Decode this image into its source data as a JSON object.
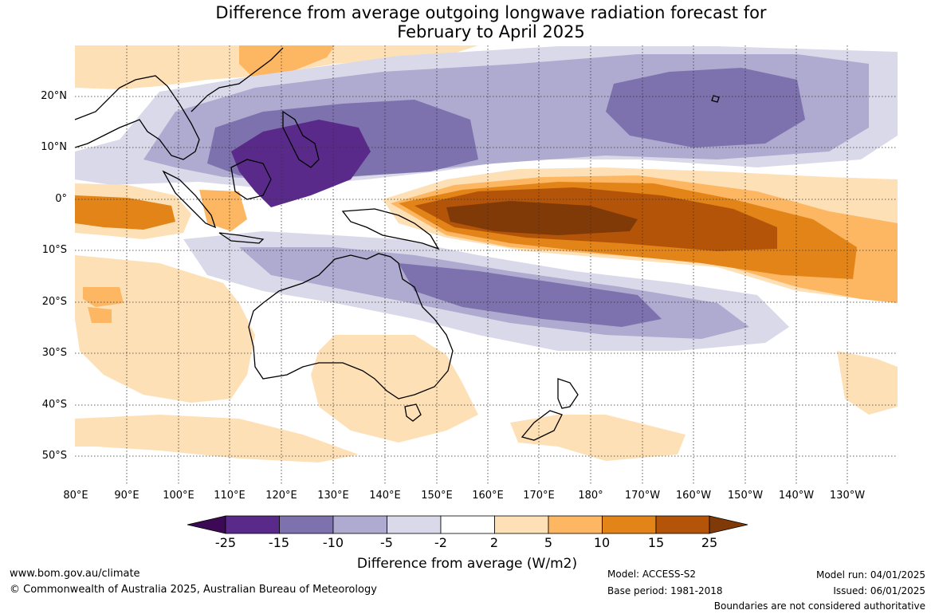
{
  "title": {
    "line1": "Difference from average outgoing longwave radiation forecast for",
    "line2": "February to April 2025"
  },
  "map": {
    "lat_labels": [
      "20°N",
      "10°N",
      "0°",
      "10°S",
      "20°S",
      "30°S",
      "40°S",
      "50°S"
    ],
    "lon_labels": [
      "80°E",
      "90°E",
      "100°E",
      "110°E",
      "120°E",
      "130°E",
      "140°E",
      "150°E",
      "160°E",
      "170°E",
      "180°",
      "170°W",
      "160°W",
      "150°W",
      "140°W",
      "130°W"
    ],
    "extent": {
      "lon_min": 80,
      "lon_max": 239,
      "lat_min": -55,
      "lat_max": 30
    }
  },
  "colorbar": {
    "labels": [
      "-25",
      "-15",
      "-10",
      "-5",
      "-2",
      "2",
      "5",
      "10",
      "15",
      "25"
    ],
    "colors": [
      "#3c0a55",
      "#5a2a8a",
      "#7d72ad",
      "#aeaad0",
      "#d9d9ea",
      "#ffffff",
      "#fee0b6",
      "#fdb662",
      "#e28418",
      "#b45408",
      "#7f3a08"
    ],
    "title": "Difference from average (W/m2)"
  },
  "footer": {
    "url": "www.bom.gov.au/climate",
    "copyright": "© Commonwealth of Australia 2025, Australian Bureau of Meteorology",
    "model": "Model: ACCESS-S2",
    "base_period": "Base period: 1981-2018",
    "model_run": "Model run: 04/01/2025",
    "issued": "Issued: 06/01/2025",
    "disclaimer": "Boundaries are not considered authoritative"
  }
}
